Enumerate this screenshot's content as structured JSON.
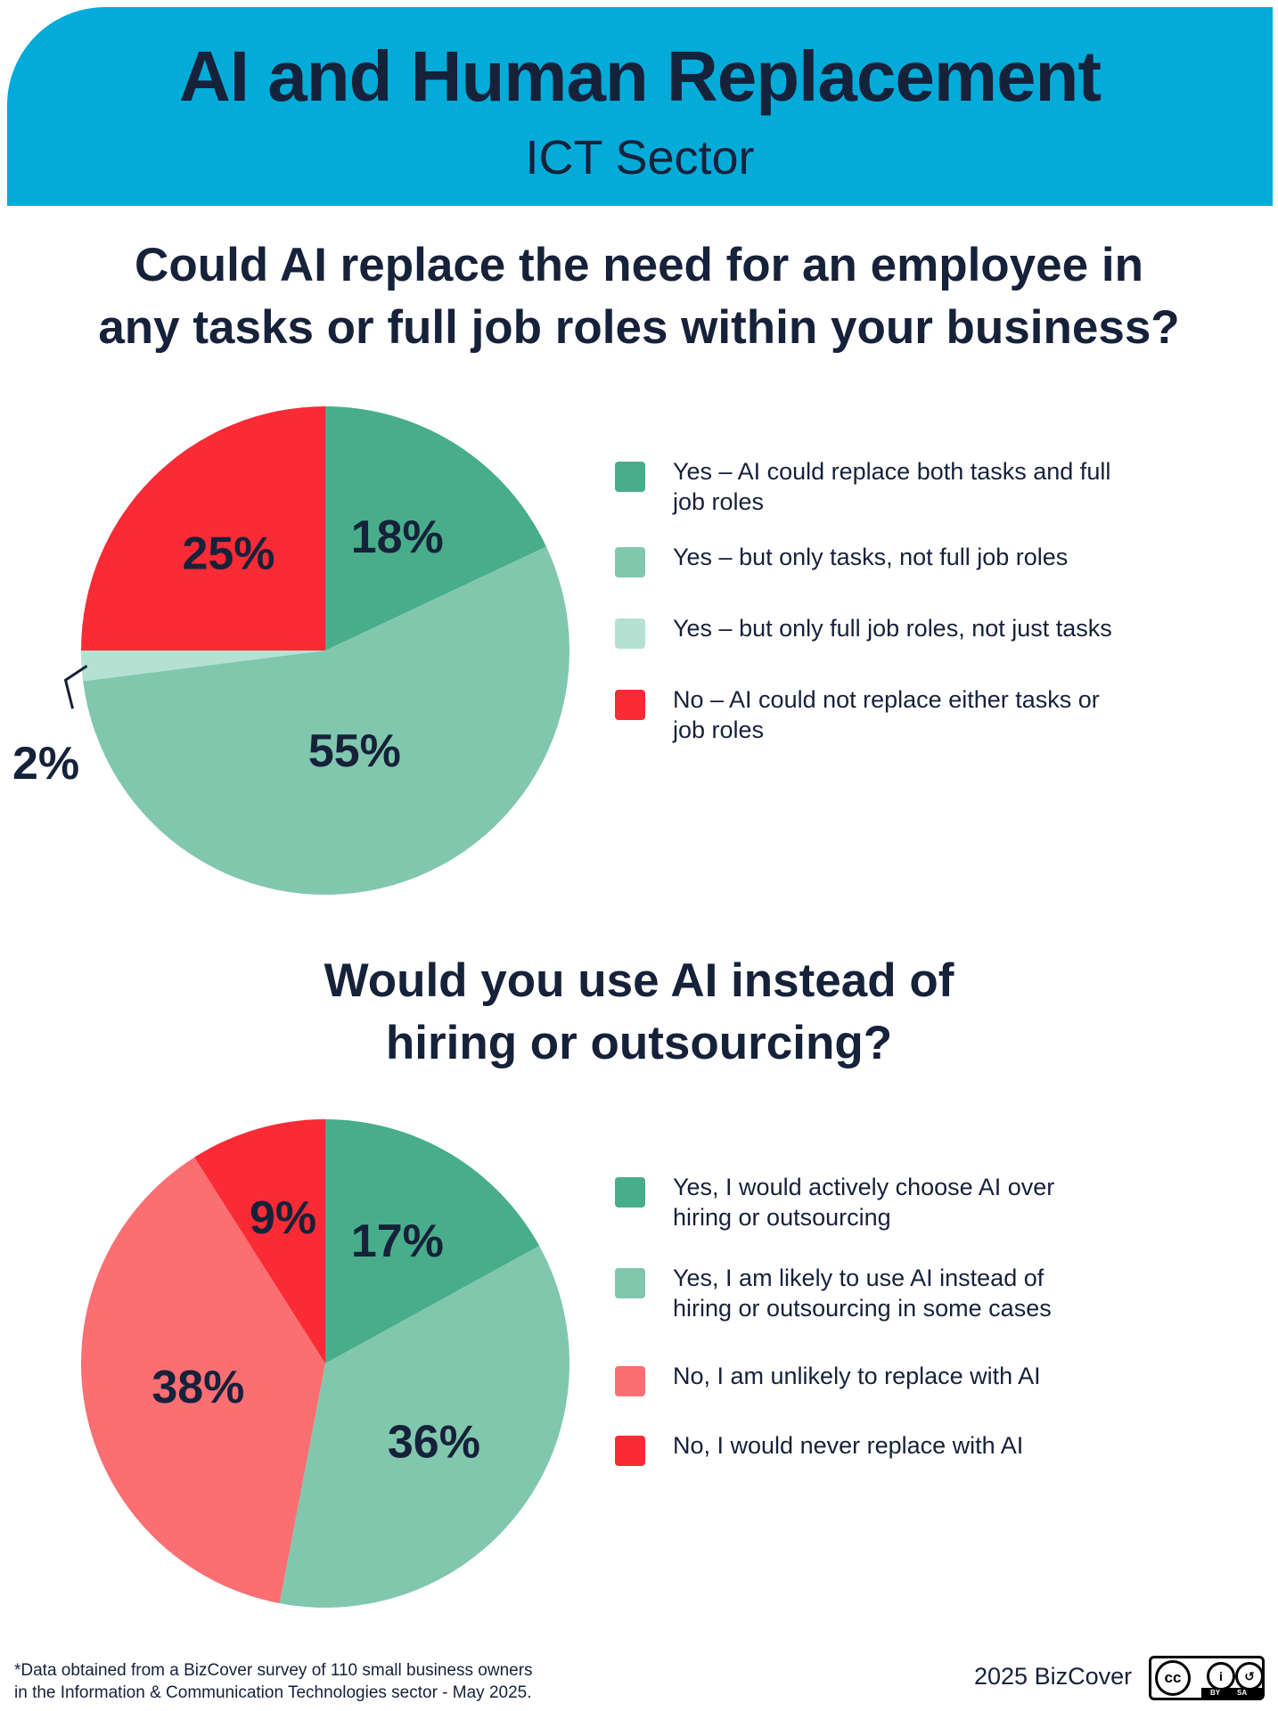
{
  "header": {
    "title": "AI and Human Replacement",
    "subtitle": "ICT Sector",
    "background": "#03abd9"
  },
  "questions": [
    [
      "Could AI replace the need for an employee in",
      "any tasks or full job roles within your business?"
    ],
    [
      "Would you use AI instead of",
      "hiring or outsourcing?"
    ]
  ],
  "chart_data": [
    {
      "type": "pie",
      "title": "Could AI replace the need for an employee in any tasks or full job roles within your business?",
      "slices": [
        {
          "label": "Yes – AI could replace both tasks and full job roles",
          "value": 18,
          "display": "18%",
          "color": "#48ad8b"
        },
        {
          "label": "Yes – but only tasks, not full job roles",
          "value": 55,
          "display": "55%",
          "color": "#80c7ae"
        },
        {
          "label": "Yes – but only full job roles, not just tasks",
          "value": 2,
          "display": "2%",
          "color": "#b4e1d2"
        },
        {
          "label": "No – AI could not replace either tasks or job roles",
          "value": 25,
          "display": "25%",
          "color": "#fa2b35"
        }
      ],
      "legend_position": "right"
    },
    {
      "type": "pie",
      "title": "Would you use AI instead of hiring or outsourcing?",
      "slices": [
        {
          "label": "Yes, I would actively choose AI over hiring or outsourcing",
          "value": 17,
          "display": "17%",
          "color": "#48ad8b"
        },
        {
          "label": "Yes, I am likely to use AI instead of hiring or outsourcing in some cases",
          "value": 36,
          "display": "36%",
          "color": "#80c7ae"
        },
        {
          "label": "No, I am unlikely to replace with AI",
          "value": 38,
          "display": "38%",
          "color": "#fb6e72"
        },
        {
          "label": "No, I would never replace with AI",
          "value": 9,
          "display": "9%",
          "color": "#fa2b35"
        }
      ],
      "legend_position": "right"
    }
  ],
  "legends": [
    [
      [
        "Yes – AI could replace both tasks and full",
        "job roles"
      ],
      [
        "Yes – but only tasks, not full job roles"
      ],
      [
        "Yes – but only full job roles, not just tasks"
      ],
      [
        "No – AI could not replace either tasks or",
        "job roles"
      ]
    ],
    [
      [
        "Yes, I would actively choose AI over",
        "hiring or outsourcing"
      ],
      [
        "Yes, I am likely to use AI instead of",
        "hiring or outsourcing in some cases"
      ],
      [
        "No, I am unlikely to replace with AI"
      ],
      [
        "No, I would never replace with AI"
      ]
    ]
  ],
  "footer": {
    "note_lines": [
      "*Data obtained from a BizCover survey of 110 small business owners",
      "in the Information & Communication Technologies sector - May 2025."
    ],
    "credit": "2025 BizCover",
    "license_icon": "creative-commons-by-sa-icon"
  }
}
